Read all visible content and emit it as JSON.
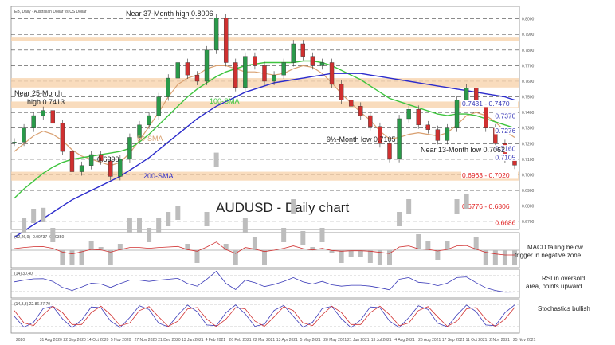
{
  "chart_data": {
    "type": "line",
    "header": "EB, Daily · Australian Dollar vs US Dollar",
    "title": "AUDUSD - Daily chart",
    "x_ticks": [
      "2020",
      "31 Aug 2020",
      "22 Sep 2020",
      "14 Oct 2020",
      "5 Nov 2020",
      "27 Nov 2020",
      "21 Dec 2020",
      "13 Jan 2021",
      "4 Feb 2021",
      "26 Feb 2021",
      "22 Mar 2021",
      "13 Apr 2021",
      "5 May 2021",
      "28 May 2021",
      "21 Jun 2021",
      "13 Jul 2021",
      "4 Aug 2021",
      "26 Aug 2021",
      "17 Sep 2021",
      "11 Oct 2021",
      "2 Nov 2021",
      "25 Nov 2021"
    ],
    "price_ylim": [
      0.665,
      0.808
    ],
    "price_axis_ticks": [
      0.67,
      0.68,
      0.69,
      0.7,
      0.71,
      0.72,
      0.73,
      0.74,
      0.75,
      0.76,
      0.77,
      0.78,
      0.79,
      0.8
    ],
    "series": [
      {
        "name": "Price",
        "color": "#333333",
        "values": [
          0.721,
          0.73,
          0.738,
          0.7413,
          0.733,
          0.715,
          0.702,
          0.706,
          0.713,
          0.709,
          0.699,
          0.71,
          0.724,
          0.732,
          0.738,
          0.75,
          0.762,
          0.772,
          0.764,
          0.76,
          0.78,
          0.8006,
          0.772,
          0.756,
          0.776,
          0.77,
          0.76,
          0.764,
          0.772,
          0.784,
          0.776,
          0.77,
          0.772,
          0.758,
          0.748,
          0.744,
          0.738,
          0.731,
          0.72,
          0.7105,
          0.736,
          0.742,
          0.732,
          0.729,
          0.722,
          0.73,
          0.748,
          0.7555,
          0.744,
          0.73,
          0.72,
          0.71,
          0.7062
        ]
      },
      {
        "name": "50-SMA",
        "color": "#d9a070",
        "values": [
          0.715,
          0.72,
          0.725,
          0.728,
          0.726,
          0.722,
          0.716,
          0.712,
          0.71,
          0.708,
          0.706,
          0.708,
          0.714,
          0.722,
          0.731,
          0.74,
          0.75,
          0.758,
          0.762,
          0.764,
          0.768,
          0.77,
          0.77,
          0.768,
          0.766,
          0.766,
          0.765,
          0.764,
          0.765,
          0.768,
          0.77,
          0.769,
          0.765,
          0.759,
          0.752,
          0.746,
          0.74,
          0.735,
          0.728,
          0.723,
          0.724,
          0.726,
          0.727,
          0.726,
          0.725,
          0.727,
          0.732,
          0.738,
          0.74,
          0.738,
          0.734,
          0.728,
          0.724
        ]
      },
      {
        "name": "100-SMA",
        "color": "#3ec43e",
        "values": [
          0.685,
          0.691,
          0.696,
          0.701,
          0.705,
          0.708,
          0.71,
          0.711,
          0.712,
          0.713,
          0.714,
          0.715,
          0.717,
          0.721,
          0.726,
          0.732,
          0.738,
          0.744,
          0.75,
          0.755,
          0.759,
          0.763,
          0.766,
          0.768,
          0.77,
          0.771,
          0.772,
          0.772,
          0.772,
          0.772,
          0.773,
          0.773,
          0.772,
          0.77,
          0.767,
          0.764,
          0.761,
          0.757,
          0.753,
          0.749,
          0.747,
          0.745,
          0.743,
          0.741,
          0.739,
          0.738,
          0.739,
          0.739,
          0.738,
          0.736,
          0.734,
          0.732,
          0.73
        ]
      },
      {
        "name": "200-SMA",
        "color": "#2c2ccc",
        "values": [
          0.66,
          0.664,
          0.668,
          0.672,
          0.676,
          0.68,
          0.684,
          0.687,
          0.69,
          0.693,
          0.696,
          0.699,
          0.703,
          0.707,
          0.711,
          0.716,
          0.721,
          0.726,
          0.731,
          0.736,
          0.74,
          0.744,
          0.747,
          0.75,
          0.753,
          0.755,
          0.757,
          0.759,
          0.76,
          0.761,
          0.762,
          0.763,
          0.764,
          0.765,
          0.765,
          0.765,
          0.765,
          0.764,
          0.763,
          0.762,
          0.761,
          0.76,
          0.759,
          0.758,
          0.757,
          0.756,
          0.755,
          0.754,
          0.753,
          0.752,
          0.751,
          0.75,
          0.748
        ]
      }
    ],
    "resistance_levels": [
      {
        "label": "0.7431 - 0.7470",
        "color": "#3a3ab8",
        "value": 0.745
      },
      {
        "label": "0.7370",
        "color": "#3a3ab8",
        "value": 0.737
      },
      {
        "label": "0.7276",
        "color": "#3a3ab8",
        "value": 0.7276
      }
    ],
    "support_levels": [
      {
        "label": "0.7160",
        "color": "#3a3ab8",
        "value": 0.716
      },
      {
        "label": "0.7105",
        "color": "#3a3ab8",
        "value": 0.7105
      },
      {
        "label": "0.6963 - 0.7020",
        "color": "#e02020",
        "value": 0.699
      },
      {
        "label": "0.6776 - 0.6806",
        "color": "#e02020",
        "value": 0.679
      },
      {
        "label": "0.6686",
        "color": "#e02020",
        "value": 0.6686
      }
    ],
    "annotations": [
      {
        "text": "Near 37-Month high 0.8006",
        "color": "#222222"
      },
      {
        "text": "Near 25-Month",
        "color": "#222222"
      },
      {
        "text": "high 0.7413",
        "color": "#222222"
      },
      {
        "text": "100-SMA",
        "color": "#3ec43e"
      },
      {
        "text": "50-SMA",
        "color": "#d9a070"
      },
      {
        "text": "200-SMA",
        "color": "#2c2ccc"
      },
      {
        "text": "0.6990",
        "color": "#222222"
      },
      {
        "text": "9½-Month low 0.7105",
        "color": "#222222"
      },
      {
        "text": "Near 13-Month low 0.7062",
        "color": "#222222"
      }
    ],
    "indicators": [
      {
        "name": "MACD",
        "header": "(12,26,9) -0.00737 -0.00350",
        "note_lines": [
          "MACD failing below",
          "trigger in negative zone"
        ]
      },
      {
        "name": "RSI",
        "header": "(14) 30.40",
        "note_lines": [
          "RSI in oversold",
          "area, points upward"
        ]
      },
      {
        "name": "Stochastics",
        "header": "(14,3,3) 22.86 27.70",
        "note_lines": [
          "Stochastics bullish"
        ]
      }
    ]
  }
}
